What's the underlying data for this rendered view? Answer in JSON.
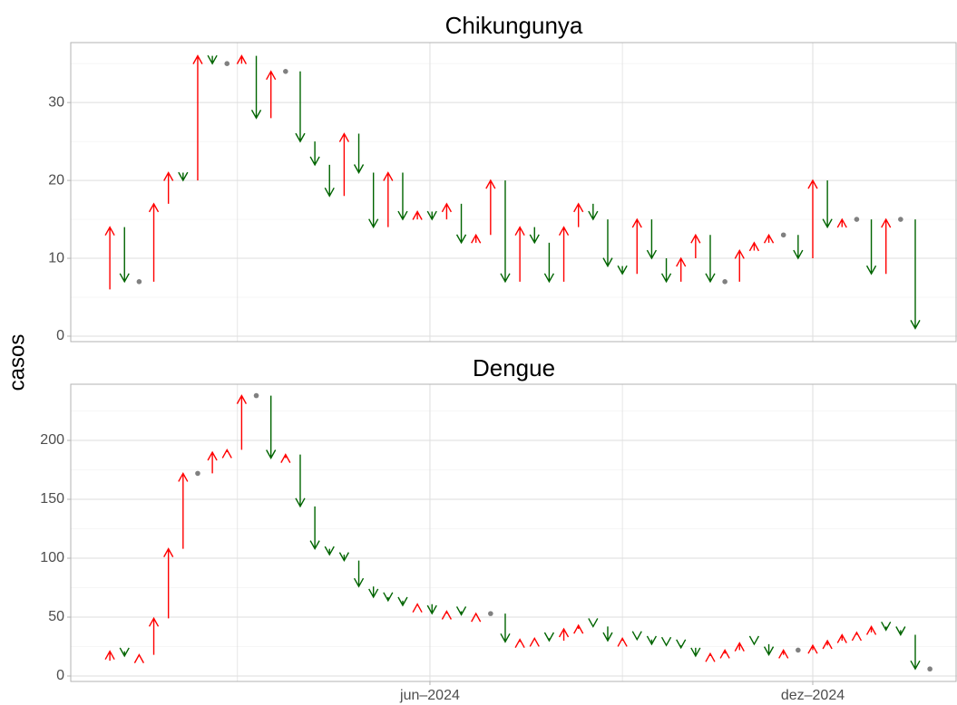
{
  "chart_data": {
    "type": "arrow",
    "ylabel": "casos",
    "categories": [
      null,
      null,
      null,
      null,
      null,
      null,
      null,
      null,
      null,
      null,
      null,
      null,
      null,
      null,
      null,
      null,
      null,
      null,
      null,
      null,
      null,
      null,
      null,
      null,
      null,
      null,
      null,
      null,
      null,
      null,
      null,
      null,
      null,
      null,
      null,
      null,
      null,
      null,
      null,
      null,
      null,
      null,
      null,
      null,
      null,
      null,
      null,
      null,
      null,
      null,
      null,
      null,
      null,
      null,
      null,
      null,
      null,
      null
    ],
    "xlim": [
      -1.67,
      58.85
    ],
    "xticks": [
      {
        "value": 22.857,
        "label": "jun–2024"
      },
      {
        "value": 49.0,
        "label": "dez–2024"
      }
    ],
    "xminor": [
      9.714,
      36.0
    ],
    "grid": true,
    "colors": {
      "up": "#ff0000",
      "down": "#006400",
      "same": "#808080"
    },
    "panels": [
      {
        "title": "Chikungunya",
        "values": [
          6,
          14,
          7,
          7,
          17,
          21,
          20,
          36,
          35,
          35,
          36,
          28,
          34,
          34,
          25,
          22,
          18,
          26,
          21,
          14,
          21,
          15,
          16,
          15,
          17,
          12,
          13,
          20,
          7,
          14,
          12,
          7,
          14,
          17,
          15,
          9,
          8,
          15,
          10,
          7,
          10,
          13,
          7,
          7,
          11,
          12,
          13,
          13,
          10,
          20,
          14,
          15,
          15,
          8,
          15,
          15,
          1,
          null
        ],
        "ylim": [
          -0.7,
          37.7
        ],
        "yticks": [
          0,
          10,
          20,
          30
        ],
        "yminor": [
          5,
          15,
          25,
          35
        ]
      },
      {
        "title": "Dengue",
        "values": [
          13,
          21,
          17,
          18,
          49,
          108,
          172,
          172,
          190,
          192,
          238,
          238,
          185,
          188,
          144,
          108,
          103,
          98,
          76,
          67,
          64,
          60,
          61,
          53,
          55,
          52,
          53,
          53,
          29,
          31,
          32,
          30,
          40,
          43,
          42,
          30,
          32,
          31,
          27,
          26,
          24,
          17,
          19,
          22,
          28,
          27,
          18,
          22,
          22,
          26,
          30,
          35,
          37,
          42,
          39,
          35,
          6,
          6
        ],
        "ylim": [
          -4.6,
          247.7
        ],
        "yticks": [
          0,
          50,
          100,
          150,
          200
        ],
        "yminor": [
          25,
          75,
          125,
          175,
          225
        ]
      }
    ]
  }
}
